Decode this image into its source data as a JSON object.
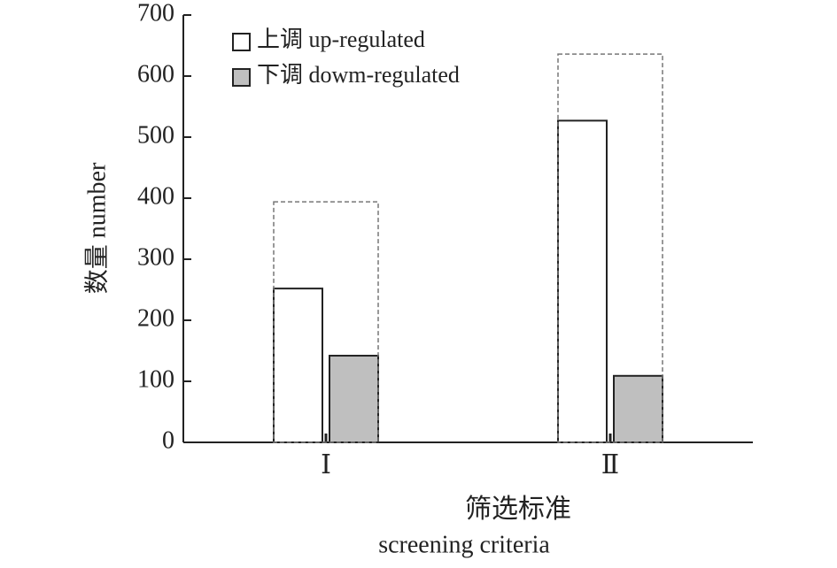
{
  "chart_data": {
    "type": "bar",
    "categories": [
      "Ⅰ",
      "Ⅱ"
    ],
    "series": [
      {
        "name": "上调 up-regulated",
        "color": "#ffffff",
        "values": [
          252,
          527
        ]
      },
      {
        "name": "下调 dowm-regulated",
        "color": "#bfbfbf",
        "values": [
          142,
          109
        ]
      }
    ],
    "ylabel": "数量 number",
    "xlabel": [
      "筛选标准",
      "screening criteria"
    ],
    "ylim": [
      0,
      700
    ],
    "yticks": [
      0,
      100,
      200,
      300,
      400,
      500,
      600,
      700
    ],
    "legend": "top-left",
    "total_outline": true
  }
}
